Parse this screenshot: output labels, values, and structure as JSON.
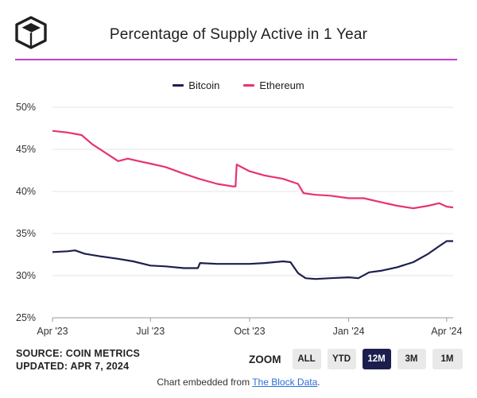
{
  "header": {
    "title": "Percentage of Supply Active in 1 Year",
    "accent_color": "#c43cd1"
  },
  "legend": [
    {
      "name": "Bitcoin",
      "color": "#1c1f4e"
    },
    {
      "name": "Ethereum",
      "color": "#e8336e"
    }
  ],
  "footer": {
    "source": "SOURCE: COIN METRICS",
    "updated": "UPDATED: APR 7, 2024",
    "embed_text": "Chart embedded from ",
    "embed_link": "The Block Data",
    "embed_end": "."
  },
  "zoom": {
    "label": "ZOOM",
    "options": [
      "ALL",
      "YTD",
      "12M",
      "3M",
      "1M"
    ],
    "selected": "12M"
  },
  "chart_data": {
    "type": "line",
    "xlim": [
      "2023-04-01",
      "2024-04-07"
    ],
    "ylim": [
      25,
      50
    ],
    "y_ticks": [
      25,
      30,
      35,
      40,
      45,
      50
    ],
    "y_tick_labels": [
      "25%",
      "30%",
      "35%",
      "40%",
      "45%",
      "50%"
    ],
    "x_ticks": [
      "2023-04-01",
      "2023-07-01",
      "2023-10-01",
      "2024-01-01",
      "2024-04-01"
    ],
    "x_tick_labels": [
      "Apr '23",
      "Jul '23",
      "Oct '23",
      "Jan '24",
      "Apr '24"
    ],
    "grid": "horizontal",
    "legend_position": "top-center",
    "series": [
      {
        "name": "Bitcoin",
        "color": "#1c1f4e",
        "points": [
          [
            "2023-04-01",
            32.8
          ],
          [
            "2023-04-15",
            32.9
          ],
          [
            "2023-04-22",
            33.0
          ],
          [
            "2023-05-01",
            32.6
          ],
          [
            "2023-05-15",
            32.3
          ],
          [
            "2023-06-01",
            32.0
          ],
          [
            "2023-06-15",
            31.7
          ],
          [
            "2023-07-01",
            31.2
          ],
          [
            "2023-07-15",
            31.1
          ],
          [
            "2023-08-01",
            30.9
          ],
          [
            "2023-08-14",
            30.9
          ],
          [
            "2023-08-16",
            31.5
          ],
          [
            "2023-09-01",
            31.4
          ],
          [
            "2023-09-15",
            31.4
          ],
          [
            "2023-10-01",
            31.4
          ],
          [
            "2023-10-15",
            31.5
          ],
          [
            "2023-11-01",
            31.7
          ],
          [
            "2023-11-08",
            31.6
          ],
          [
            "2023-11-15",
            30.3
          ],
          [
            "2023-11-22",
            29.7
          ],
          [
            "2023-12-01",
            29.6
          ],
          [
            "2023-12-15",
            29.7
          ],
          [
            "2024-01-01",
            29.8
          ],
          [
            "2024-01-10",
            29.7
          ],
          [
            "2024-01-20",
            30.4
          ],
          [
            "2024-02-01",
            30.6
          ],
          [
            "2024-02-15",
            31.0
          ],
          [
            "2024-03-01",
            31.6
          ],
          [
            "2024-03-15",
            32.6
          ],
          [
            "2024-03-25",
            33.5
          ],
          [
            "2024-04-01",
            34.1
          ],
          [
            "2024-04-07",
            34.1
          ]
        ]
      },
      {
        "name": "Ethereum",
        "color": "#e8336e",
        "points": [
          [
            "2023-04-01",
            47.2
          ],
          [
            "2023-04-15",
            47.0
          ],
          [
            "2023-04-28",
            46.7
          ],
          [
            "2023-05-08",
            45.6
          ],
          [
            "2023-05-20",
            44.6
          ],
          [
            "2023-06-01",
            43.6
          ],
          [
            "2023-06-10",
            43.9
          ],
          [
            "2023-06-20",
            43.6
          ],
          [
            "2023-07-01",
            43.3
          ],
          [
            "2023-07-15",
            42.9
          ],
          [
            "2023-08-01",
            42.1
          ],
          [
            "2023-08-15",
            41.5
          ],
          [
            "2023-09-01",
            40.9
          ],
          [
            "2023-09-15",
            40.6
          ],
          [
            "2023-09-18",
            40.6
          ],
          [
            "2023-09-19",
            43.2
          ],
          [
            "2023-10-01",
            42.4
          ],
          [
            "2023-10-15",
            41.9
          ],
          [
            "2023-11-01",
            41.5
          ],
          [
            "2023-11-15",
            40.9
          ],
          [
            "2023-11-20",
            39.8
          ],
          [
            "2023-12-01",
            39.6
          ],
          [
            "2023-12-15",
            39.5
          ],
          [
            "2024-01-01",
            39.2
          ],
          [
            "2024-01-15",
            39.2
          ],
          [
            "2024-02-01",
            38.7
          ],
          [
            "2024-02-15",
            38.3
          ],
          [
            "2024-03-01",
            38.0
          ],
          [
            "2024-03-15",
            38.3
          ],
          [
            "2024-03-25",
            38.6
          ],
          [
            "2024-04-01",
            38.2
          ],
          [
            "2024-04-07",
            38.1
          ]
        ]
      }
    ]
  }
}
